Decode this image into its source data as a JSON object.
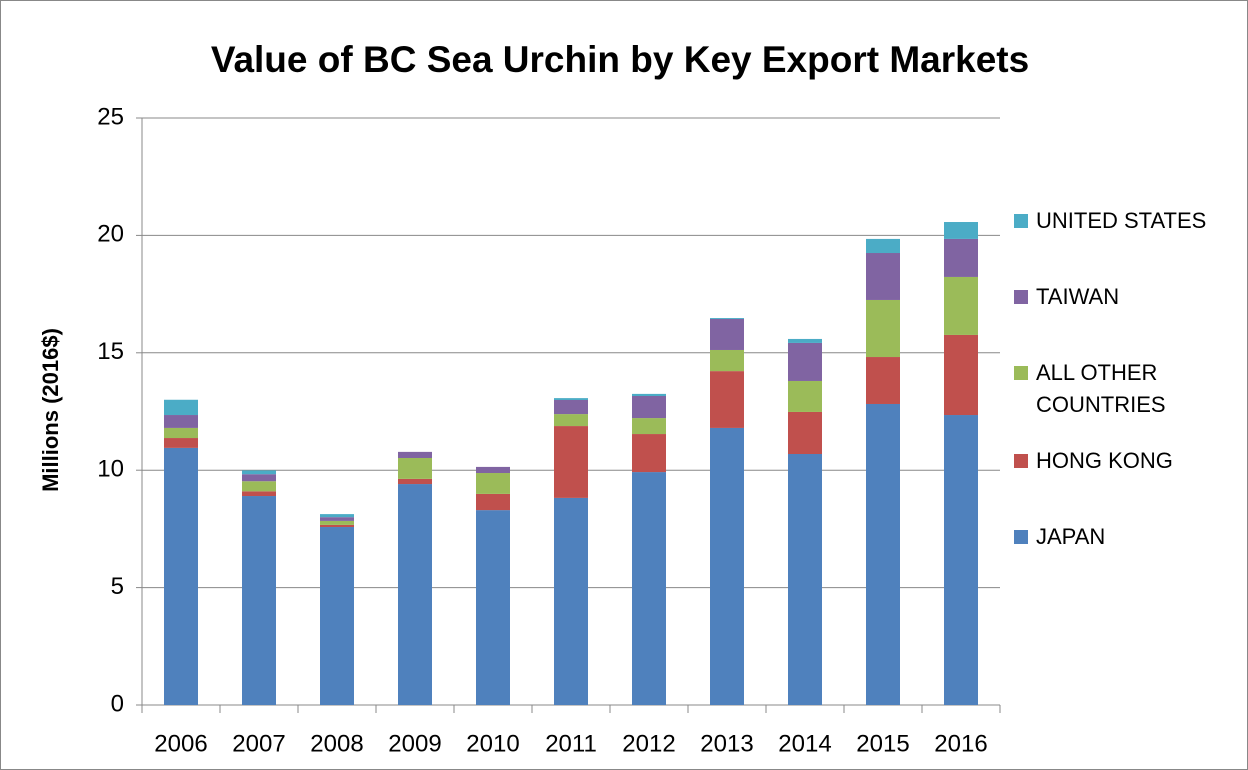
{
  "chart_data": {
    "type": "stacked_bar",
    "title": "Value of BC Sea Urchin by Key Export Markets",
    "y_label": "Millions  (2016$)",
    "categories": [
      "2006",
      "2007",
      "2008",
      "2009",
      "2010",
      "2011",
      "2012",
      "2013",
      "2014",
      "2015",
      "2016"
    ],
    "series": [
      {
        "name": "JAPAN",
        "color": "#4f81bd",
        "values": [
          10.95,
          8.9,
          7.58,
          9.41,
          8.3,
          8.82,
          9.92,
          11.8,
          10.69,
          12.82,
          12.35
        ]
      },
      {
        "name": "HONG KONG",
        "color": "#c0504d",
        "values": [
          0.42,
          0.2,
          0.09,
          0.22,
          0.69,
          3.06,
          1.62,
          2.42,
          1.79,
          2.0,
          3.41
        ]
      },
      {
        "name": "ALL OTHER COUNTRIES",
        "color": "#9bbb59",
        "values": [
          0.43,
          0.43,
          0.17,
          0.89,
          0.89,
          0.51,
          0.68,
          0.9,
          1.32,
          2.43,
          2.47
        ]
      },
      {
        "name": "TAIWAN",
        "color": "#8064a2",
        "values": [
          0.55,
          0.3,
          0.16,
          0.26,
          0.26,
          0.6,
          0.94,
          1.32,
          1.62,
          2.0,
          1.62
        ]
      },
      {
        "name": "UNITED STATES",
        "color": "#4bacc6",
        "values": [
          0.65,
          0.16,
          0.13,
          0.0,
          0.0,
          0.08,
          0.09,
          0.04,
          0.17,
          0.6,
          0.72
        ]
      }
    ],
    "ylim": [
      0,
      25
    ],
    "yticks": [
      0,
      5,
      10,
      15,
      20,
      25
    ],
    "grid": true,
    "legend": "right"
  }
}
